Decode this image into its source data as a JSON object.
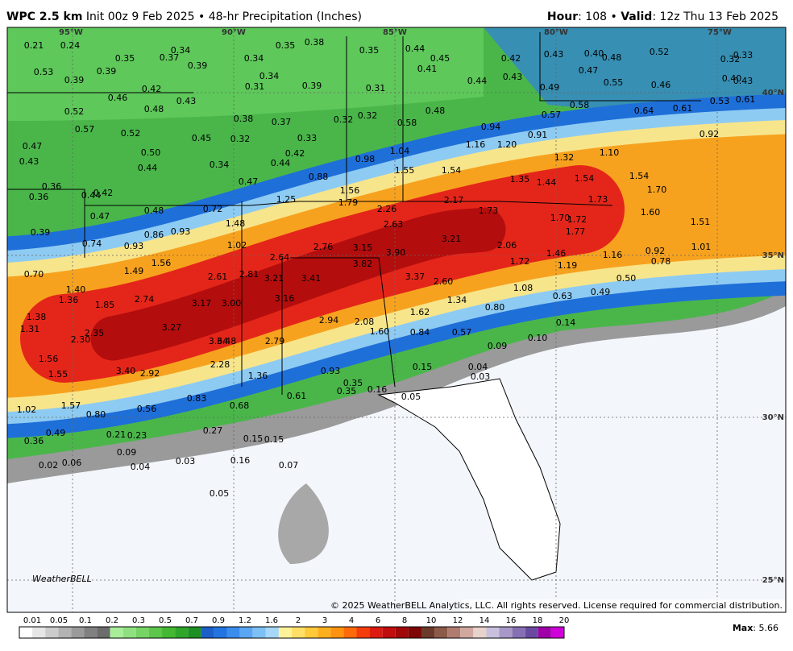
{
  "header": {
    "model": "WPC 2.5 km",
    "init": "Init 00z 9 Feb 2025 • 48-hr Precipitation (Inches)",
    "hour_key": "Hour",
    "hour_val": ": 108 • ",
    "valid_key": "Valid",
    "valid_val": ": 12z Thu 13 Feb 2025"
  },
  "map": {
    "lon_labels": [
      "95°W",
      "90°W",
      "85°W",
      "80°W",
      "75°W"
    ],
    "lat_labels": [
      "40°N",
      "35°N",
      "30°N",
      "25°N"
    ],
    "labels": [
      "0.21",
      "0.24",
      "0.35",
      "0.37",
      "0.34",
      "0.34",
      "0.35",
      "0.38",
      "0.35",
      "0.44",
      "0.45",
      "0.41",
      "0.42",
      "0.43",
      "0.40",
      "0.48",
      "0.52",
      "0.32",
      "0.33",
      "0.53",
      "0.39",
      "0.39",
      "0.39",
      "0.34",
      "0.31",
      "0.39",
      "0.31",
      "0.44",
      "0.43",
      "0.47",
      "0.55",
      "0.46",
      "0.49",
      "0.40",
      "0.43",
      "0.46",
      "0.42",
      "0.43",
      "0.48",
      "0.52",
      "0.57",
      "0.52",
      "0.45",
      "0.32",
      "0.38",
      "0.37",
      "0.33",
      "0.32",
      "0.32",
      "0.48",
      "0.58",
      "0.58",
      "0.57",
      "0.64",
      "0.61",
      "0.53",
      "0.61",
      "0.94",
      "0.91",
      "1.16",
      "1.20",
      "1.32",
      "1.10",
      "0.92",
      "0.47",
      "0.43",
      "0.50",
      "0.44",
      "0.34",
      "0.44",
      "0.42",
      "0.98",
      "1.04",
      "1.55",
      "1.54",
      "1.35",
      "1.44",
      "1.54",
      "1.54",
      "1.70",
      "0.36",
      "0.36",
      "0.44",
      "0.42",
      "0.47",
      "0.88",
      "1.56",
      "1.25",
      "1.79",
      "2.17",
      "1.73",
      "0.47",
      "0.48",
      "0.72",
      "2.26",
      "1.73",
      "1.70",
      "1.72",
      "1.60",
      "1.51",
      "1.48",
      "2.63",
      "1.77",
      "0.39",
      "0.86",
      "0.93",
      "0.74",
      "0.93",
      "1.02",
      "2.76",
      "3.15",
      "3.21",
      "2.06",
      "1.01",
      "3.90",
      "2.64",
      "1.56",
      "1.72",
      "1.46",
      "1.16",
      "0.92",
      "0.78",
      "1.19",
      "3.82",
      "1.49",
      "0.70",
      "2.61",
      "2.81",
      "3.21",
      "3.41",
      "3.37",
      "2.60",
      "0.50",
      "1.40",
      "1.08",
      "1.36",
      "2.74",
      "3.17",
      "3.00",
      "3.16",
      "1.34",
      "0.63",
      "0.49",
      "1.85",
      "1.62",
      "0.80",
      "1.38",
      "1.31",
      "3.27",
      "2.94",
      "2.08",
      "1.60",
      "0.84",
      "0.57",
      "0.14",
      "2.35",
      "2.30",
      "3.64",
      "3.48",
      "2.79",
      "0.09",
      "0.10",
      "1.56",
      "2.28",
      "0.15",
      "0.04",
      "0.03",
      "3.40",
      "2.92",
      "1.55",
      "1.36",
      "0.93",
      "0.35",
      "0.35",
      "0.16",
      "0.05",
      "0.83",
      "0.61",
      "0.68",
      "1.57",
      "1.02",
      "0.80",
      "0.56",
      "0.49",
      "0.36",
      "0.21",
      "0.23",
      "0.27",
      "0.15",
      "0.15",
      "0.09",
      "0.02",
      "0.06",
      "0.04",
      "0.03",
      "0.16",
      "0.07",
      "0.05"
    ],
    "logo": "WeatherBELL",
    "copyright": "© 2025 WeatherBELL Analytics, LLC. All rights reserved. License required for commercial distribution."
  },
  "colorbar": {
    "labels": [
      "0.01",
      "0.05",
      "0.1",
      "0.2",
      "0.3",
      "0.5",
      "0.7",
      "0.9",
      "1.2",
      "1.6",
      "2",
      "3",
      "4",
      "6",
      "8",
      "10",
      "12",
      "14",
      "16",
      "18",
      "20"
    ]
  },
  "footer": {
    "max_key": "Max",
    "max_val": ": 5.66"
  }
}
